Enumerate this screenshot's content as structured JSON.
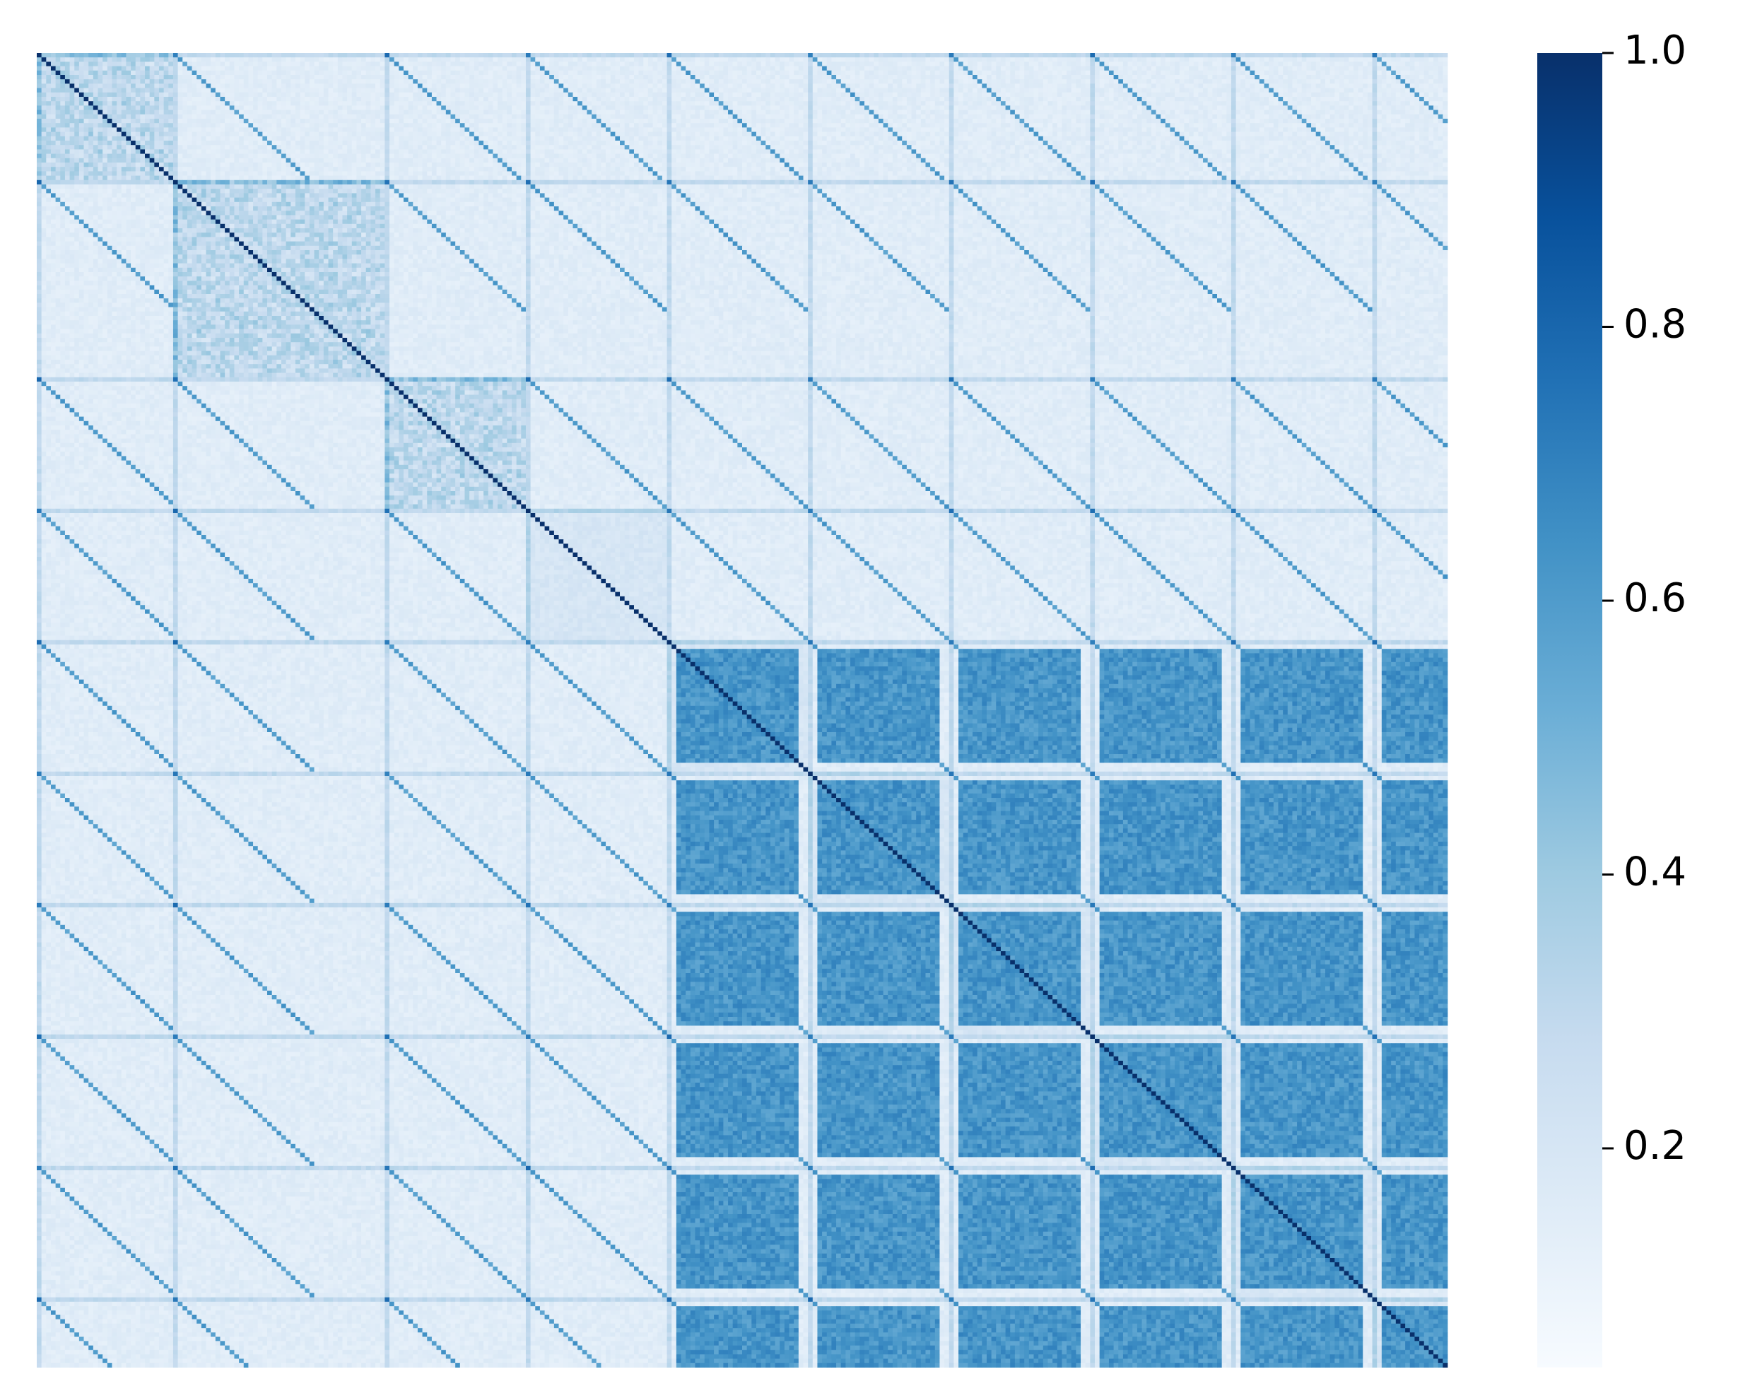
{
  "chart_data": {
    "type": "heatmap",
    "title": "",
    "xlabel": "",
    "ylabel": "",
    "colormap": "Blues",
    "colormap_stops": [
      "#f7fbff",
      "#deebf7",
      "#c6dbef",
      "#9ecae1",
      "#6baed6",
      "#4292c6",
      "#2171b5",
      "#08519c",
      "#08306b"
    ],
    "value_range": [
      0.04,
      1.0
    ],
    "n_rows": 300,
    "n_cols": 300,
    "block_starts": [
      0,
      29,
      74,
      104,
      134,
      164,
      194,
      224,
      254,
      284
    ],
    "diagonal_value": 1.0,
    "background_value": 0.12,
    "strong_cluster_blocks": [
      4,
      5,
      6,
      7,
      8,
      9
    ],
    "strong_cluster_value": 0.65,
    "colorbar": {
      "ticks": [
        0.2,
        0.4,
        0.6,
        0.8,
        1.0
      ],
      "tick_labels": [
        "0.2",
        "0.4",
        "0.6",
        "0.8",
        "1.0"
      ]
    }
  }
}
